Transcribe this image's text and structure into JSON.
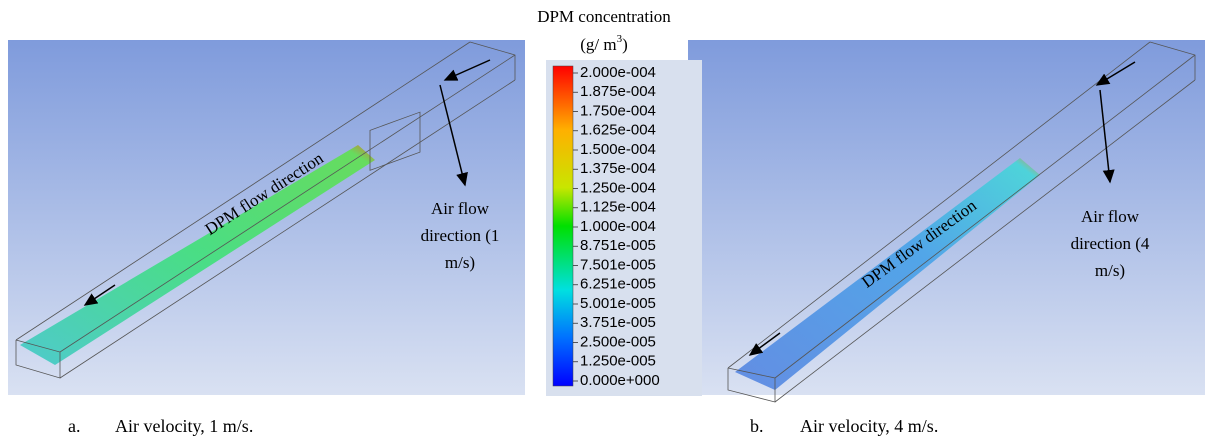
{
  "colorbar": {
    "title": "DPM concentration",
    "unit_base": "(g/ m",
    "unit_exponent": "3",
    "unit_close": ")",
    "labels": [
      "2.000e-004",
      "1.875e-004",
      "1.750e-004",
      "1.625e-004",
      "1.500e-004",
      "1.375e-004",
      "1.250e-004",
      "1.125e-004",
      "1.000e-004",
      "8.751e-005",
      "7.501e-005",
      "6.251e-005",
      "5.001e-005",
      "3.751e-005",
      "2.500e-005",
      "1.250e-005",
      "0.000e+000"
    ]
  },
  "panels": [
    {
      "flow_label": "DPM flow direction",
      "air_label": [
        "Air flow",
        "direction (1",
        "m/s)"
      ],
      "caption_letter": "a.",
      "caption": "Air velocity, 1 m/s."
    },
    {
      "flow_label": "DPM flow direction",
      "air_label": [
        "Air flow",
        "direction (4",
        "m/s)"
      ],
      "caption_letter": "b.",
      "caption": "Air velocity, 4 m/s."
    }
  ]
}
